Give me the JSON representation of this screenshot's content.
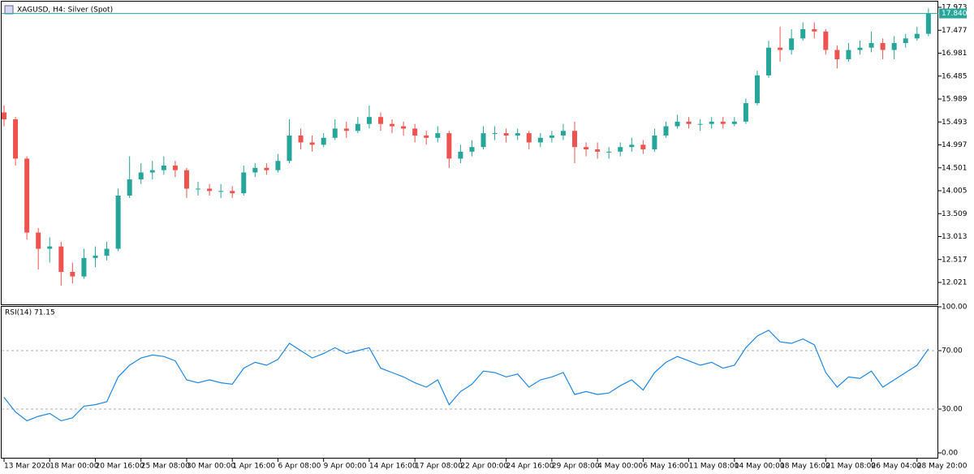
{
  "chart_data": [
    {
      "type": "candlestick",
      "title": "XAGUSD, H4:  Silver (Spot)",
      "up_color": "#26a69a",
      "down_color": "#ef5350",
      "categories": [
        "13 Mar 2020",
        null,
        null,
        null,
        "18 Mar 00:00",
        null,
        null,
        null,
        "20 Mar 16:00",
        null,
        null,
        null,
        "25 Mar 08:00",
        null,
        null,
        null,
        "30 Mar 00:00",
        null,
        null,
        null,
        "1 Apr 16:00",
        null,
        null,
        null,
        "6 Apr 08:00",
        null,
        null,
        null,
        "9 Apr 00:00",
        null,
        null,
        null,
        "14 Apr 16:00",
        null,
        null,
        null,
        "17 Apr 08:00",
        null,
        null,
        null,
        "22 Apr 00:00",
        null,
        null,
        null,
        "24 Apr 16:00",
        null,
        null,
        null,
        "29 Apr 08:00",
        null,
        null,
        null,
        "4 May 00:00",
        null,
        null,
        null,
        "6 May 16:00",
        null,
        null,
        null,
        "11 May 08:00",
        null,
        null,
        null,
        "14 May 00:00",
        null,
        null,
        null,
        "18 May 16:00",
        null,
        null,
        null,
        "21 May 08:00",
        null,
        null,
        null,
        "26 May 04:00",
        null,
        null,
        null,
        "28 May 20:00",
        null
      ],
      "ohlc": [
        [
          15.7,
          15.85,
          15.4,
          15.55
        ],
        [
          15.55,
          15.6,
          14.55,
          14.7
        ],
        [
          14.7,
          14.75,
          12.95,
          13.1
        ],
        [
          13.1,
          13.2,
          12.3,
          12.75
        ],
        [
          12.75,
          13.0,
          12.45,
          12.8
        ],
        [
          12.8,
          12.9,
          11.95,
          12.25
        ],
        [
          12.25,
          12.45,
          12.0,
          12.15
        ],
        [
          12.15,
          12.75,
          12.1,
          12.55
        ],
        [
          12.55,
          12.8,
          12.35,
          12.6
        ],
        [
          12.6,
          12.9,
          12.5,
          12.75
        ],
        [
          12.75,
          14.05,
          12.7,
          13.9
        ],
        [
          13.9,
          14.75,
          13.85,
          14.25
        ],
        [
          14.25,
          14.6,
          14.15,
          14.4
        ],
        [
          14.4,
          14.65,
          14.25,
          14.45
        ],
        [
          14.45,
          14.75,
          14.35,
          14.55
        ],
        [
          14.55,
          14.65,
          14.3,
          14.45
        ],
        [
          14.45,
          14.5,
          13.85,
          14.05
        ],
        [
          14.05,
          14.2,
          13.9,
          14.05
        ],
        [
          14.05,
          14.15,
          13.9,
          14.0
        ],
        [
          14.0,
          14.15,
          13.85,
          14.0
        ],
        [
          14.0,
          14.1,
          13.85,
          13.95
        ],
        [
          13.95,
          14.55,
          13.9,
          14.4
        ],
        [
          14.4,
          14.6,
          14.3,
          14.5
        ],
        [
          14.5,
          14.6,
          14.35,
          14.45
        ],
        [
          14.45,
          14.8,
          14.4,
          14.65
        ],
        [
          14.65,
          15.55,
          14.6,
          15.2
        ],
        [
          15.2,
          15.35,
          14.9,
          15.05
        ],
        [
          15.05,
          15.2,
          14.85,
          15.0
        ],
        [
          15.0,
          15.25,
          14.95,
          15.15
        ],
        [
          15.15,
          15.55,
          15.1,
          15.35
        ],
        [
          15.35,
          15.5,
          15.15,
          15.3
        ],
        [
          15.3,
          15.6,
          15.25,
          15.45
        ],
        [
          15.45,
          15.85,
          15.35,
          15.6
        ],
        [
          15.6,
          15.7,
          15.3,
          15.45
        ],
        [
          15.45,
          15.55,
          15.25,
          15.4
        ],
        [
          15.4,
          15.5,
          15.2,
          15.35
        ],
        [
          15.35,
          15.45,
          15.05,
          15.2
        ],
        [
          15.2,
          15.3,
          15.0,
          15.15
        ],
        [
          15.15,
          15.4,
          15.05,
          15.25
        ],
        [
          15.25,
          15.3,
          14.5,
          14.7
        ],
        [
          14.7,
          15.0,
          14.6,
          14.85
        ],
        [
          14.85,
          15.1,
          14.75,
          14.95
        ],
        [
          14.95,
          15.4,
          14.9,
          15.25
        ],
        [
          15.25,
          15.4,
          15.1,
          15.25
        ],
        [
          15.25,
          15.35,
          15.05,
          15.2
        ],
        [
          15.2,
          15.35,
          15.1,
          15.25
        ],
        [
          15.25,
          15.3,
          14.9,
          15.05
        ],
        [
          15.05,
          15.25,
          14.95,
          15.15
        ],
        [
          15.15,
          15.3,
          15.05,
          15.2
        ],
        [
          15.2,
          15.45,
          15.1,
          15.3
        ],
        [
          15.3,
          15.5,
          14.6,
          14.95
        ],
        [
          14.95,
          15.05,
          14.75,
          14.9
        ],
        [
          14.9,
          15.05,
          14.7,
          14.85
        ],
        [
          14.85,
          14.95,
          14.7,
          14.85
        ],
        [
          14.85,
          15.05,
          14.75,
          14.95
        ],
        [
          14.95,
          15.15,
          14.85,
          15.0
        ],
        [
          15.0,
          15.1,
          14.8,
          14.9
        ],
        [
          14.9,
          15.35,
          14.85,
          15.2
        ],
        [
          15.2,
          15.5,
          15.15,
          15.4
        ],
        [
          15.4,
          15.65,
          15.35,
          15.5
        ],
        [
          15.5,
          15.6,
          15.35,
          15.45
        ],
        [
          15.45,
          15.55,
          15.3,
          15.45
        ],
        [
          15.45,
          15.6,
          15.35,
          15.5
        ],
        [
          15.5,
          15.6,
          15.35,
          15.45
        ],
        [
          15.45,
          15.6,
          15.4,
          15.5
        ],
        [
          15.5,
          16.0,
          15.45,
          15.9
        ],
        [
          15.9,
          16.6,
          15.85,
          16.5
        ],
        [
          16.5,
          17.25,
          16.45,
          17.1
        ],
        [
          17.1,
          17.55,
          16.8,
          17.05
        ],
        [
          17.05,
          17.5,
          16.95,
          17.3
        ],
        [
          17.3,
          17.65,
          17.25,
          17.5
        ],
        [
          17.5,
          17.65,
          17.3,
          17.45
        ],
        [
          17.45,
          17.5,
          16.95,
          17.05
        ],
        [
          17.05,
          17.15,
          16.65,
          16.85
        ],
        [
          16.85,
          17.2,
          16.8,
          17.05
        ],
        [
          17.05,
          17.25,
          16.95,
          17.1
        ],
        [
          17.1,
          17.45,
          17.0,
          17.2
        ],
        [
          17.2,
          17.3,
          16.85,
          17.05
        ],
        [
          17.05,
          17.35,
          16.85,
          17.2
        ],
        [
          17.2,
          17.4,
          17.1,
          17.3
        ],
        [
          17.3,
          17.55,
          17.25,
          17.4
        ],
        [
          17.4,
          17.95,
          17.35,
          17.84
        ]
      ],
      "ylim": [
        11.547,
        18.096
      ],
      "yticks": [
        17.973,
        17.477,
        16.981,
        16.485,
        15.989,
        15.493,
        14.997,
        14.501,
        14.005,
        13.509,
        13.013,
        12.517,
        12.021
      ],
      "current_price": {
        "value": 17.84,
        "label": "17.840"
      },
      "current_color": "#26a69a"
    },
    {
      "type": "line",
      "title": "RSI(14) 71.15",
      "color": "#1e88e5",
      "values": [
        38,
        28,
        22,
        25,
        27,
        22,
        24,
        32,
        33,
        35,
        52,
        60,
        65,
        67,
        66,
        63,
        50,
        48,
        50,
        48,
        47,
        58,
        62,
        60,
        64,
        75,
        70,
        65,
        68,
        72,
        68,
        70,
        72,
        58,
        55,
        52,
        48,
        45,
        50,
        33,
        42,
        47,
        56,
        55,
        52,
        54,
        45,
        50,
        52,
        55,
        40,
        42,
        40,
        41,
        46,
        50,
        43,
        55,
        62,
        66,
        63,
        60,
        62,
        58,
        60,
        72,
        80,
        84,
        76,
        75,
        78,
        74,
        55,
        45,
        52,
        51,
        56,
        45,
        50,
        55,
        60,
        71.15
      ],
      "ylim": [
        0,
        100
      ],
      "yticks": [
        {
          "value": 100,
          "label": "100.00"
        },
        {
          "value": 70,
          "label": "70.00"
        },
        {
          "value": 30,
          "label": "30.00"
        },
        {
          "value": 0,
          "label": "0.00"
        }
      ],
      "levels": [
        70,
        30
      ]
    }
  ]
}
